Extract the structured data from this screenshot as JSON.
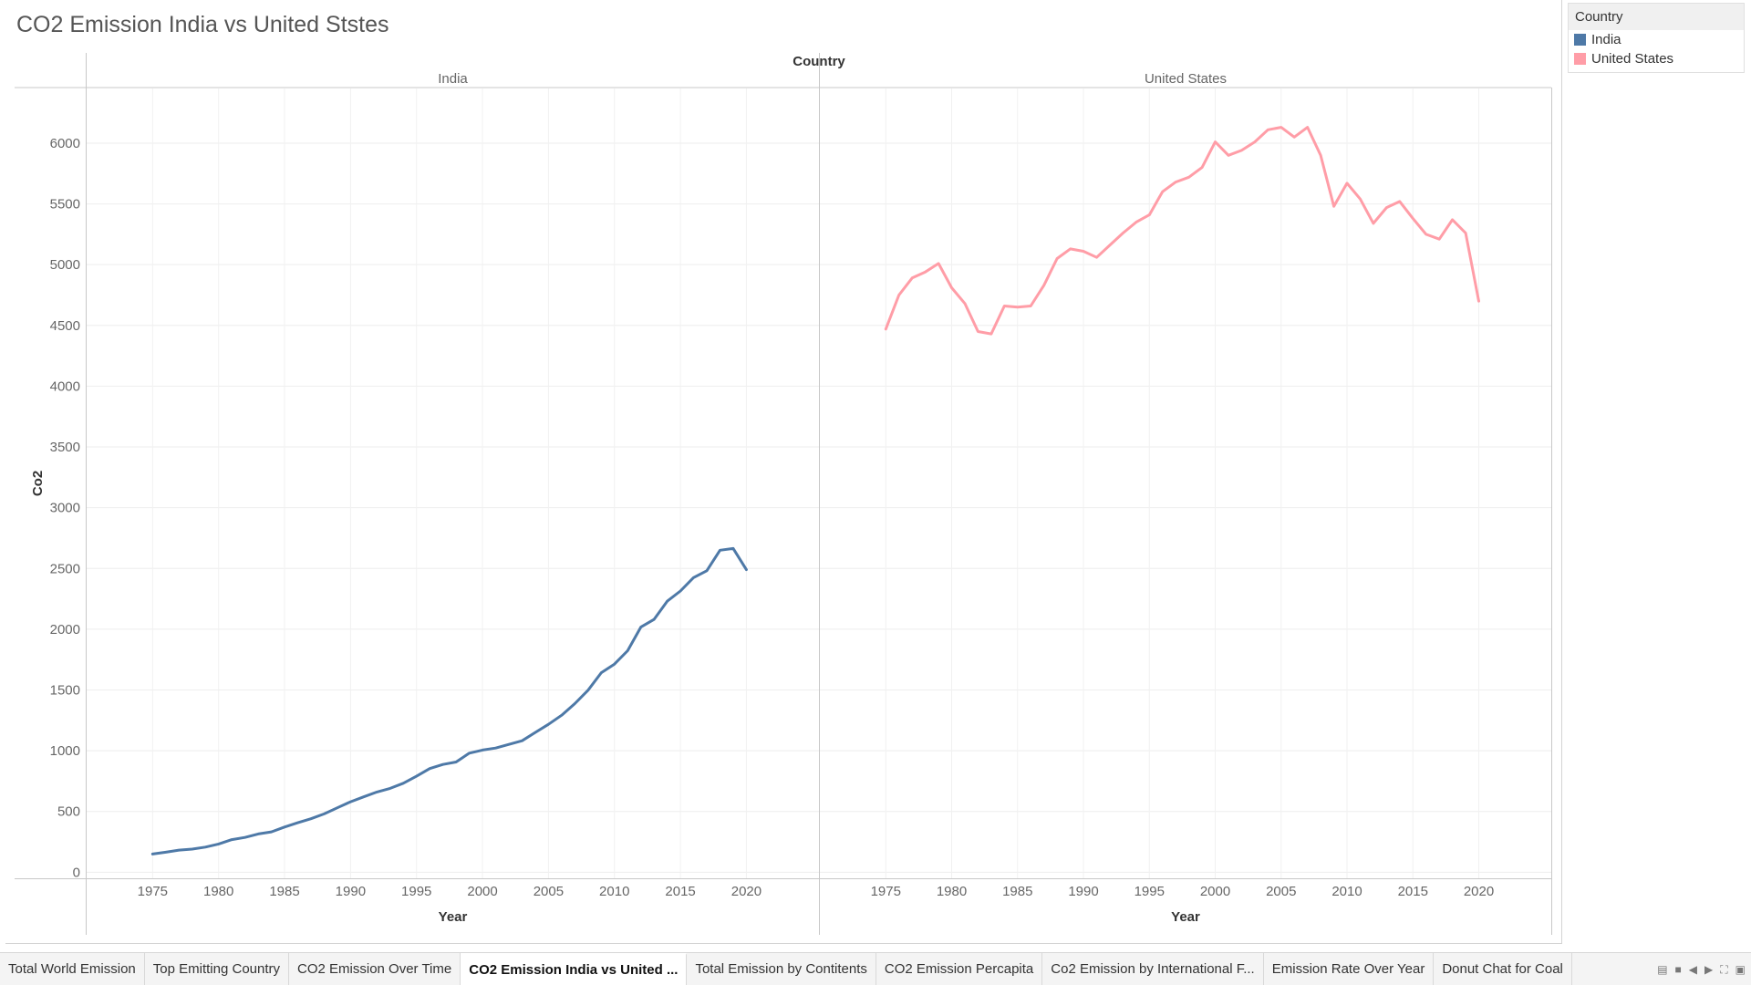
{
  "title": "CO2 Emission India vs United Ststes",
  "legend": {
    "title": "Country",
    "items": [
      {
        "label": "India",
        "color": "#4e79a7"
      },
      {
        "label": "United States",
        "color": "#ff9da7"
      }
    ]
  },
  "chart_data": {
    "type": "line",
    "column_header": "Country",
    "panels": [
      "India",
      "United States"
    ],
    "xlabel": "Year",
    "ylabel": "Co2",
    "ylim": [
      -50,
      6450
    ],
    "xlim": [
      1970,
      2025.5
    ],
    "x_ticks": [
      1975,
      1980,
      1985,
      1990,
      1995,
      2000,
      2005,
      2010,
      2015,
      2020
    ],
    "y_ticks": [
      0,
      500,
      1000,
      1500,
      2000,
      2500,
      3000,
      3500,
      4000,
      4500,
      5000,
      5500,
      6000
    ],
    "grid": true,
    "legend_position": "right",
    "series": [
      {
        "name": "India",
        "color": "#4e79a7",
        "x": [
          1975,
          1976,
          1977,
          1978,
          1979,
          1980,
          1981,
          1982,
          1983,
          1984,
          1985,
          1986,
          1987,
          1988,
          1989,
          1990,
          1991,
          1992,
          1993,
          1994,
          1995,
          1996,
          1997,
          1998,
          1999,
          2000,
          2001,
          2002,
          2003,
          2004,
          2005,
          2006,
          2007,
          2008,
          2009,
          2010,
          2011,
          2012,
          2013,
          2014,
          2015,
          2016,
          2017,
          2018,
          2019,
          2020
        ],
        "y": [
          150,
          165,
          182,
          190,
          207,
          232,
          268,
          286,
          315,
          332,
          372,
          407,
          440,
          480,
          530,
          580,
          620,
          660,
          690,
          732,
          790,
          853,
          887,
          907,
          980,
          1005,
          1022,
          1052,
          1082,
          1150,
          1217,
          1292,
          1387,
          1498,
          1642,
          1712,
          1823,
          2017,
          2080,
          2230,
          2314,
          2425,
          2481,
          2650,
          2664,
          2490
        ]
      },
      {
        "name": "United States",
        "color": "#ff9da7",
        "x": [
          1975,
          1976,
          1977,
          1978,
          1979,
          1980,
          1981,
          1982,
          1983,
          1984,
          1985,
          1986,
          1987,
          1988,
          1989,
          1990,
          1991,
          1992,
          1993,
          1994,
          1995,
          1996,
          1997,
          1998,
          1999,
          2000,
          2001,
          2002,
          2003,
          2004,
          2005,
          2006,
          2007,
          2008,
          2009,
          2010,
          2011,
          2012,
          2013,
          2014,
          2015,
          2016,
          2017,
          2018,
          2019,
          2020
        ],
        "y": [
          4470,
          4750,
          4890,
          4940,
          5010,
          4810,
          4680,
          4450,
          4430,
          4660,
          4650,
          4660,
          4830,
          5050,
          5130,
          5110,
          5060,
          5160,
          5260,
          5350,
          5410,
          5600,
          5680,
          5720,
          5800,
          6010,
          5900,
          5940,
          6010,
          6110,
          6130,
          6050,
          6130,
          5900,
          5480,
          5670,
          5540,
          5340,
          5470,
          5520,
          5380,
          5250,
          5210,
          5370,
          5260,
          4700
        ]
      }
    ]
  },
  "tabs": [
    {
      "label": "Total World Emission",
      "active": false
    },
    {
      "label": "Top Emitting Country",
      "active": false
    },
    {
      "label": "CO2 Emission Over Time",
      "active": false
    },
    {
      "label": "CO2 Emission India vs United ...",
      "active": true
    },
    {
      "label": "Total Emission by Contitents",
      "active": false
    },
    {
      "label": "CO2 Emission Percapita",
      "active": false
    },
    {
      "label": "Co2 Emission by International F...",
      "active": false
    },
    {
      "label": "Emission Rate Over Year",
      "active": false
    },
    {
      "label": "Donut Chat for Coal",
      "active": false
    }
  ]
}
